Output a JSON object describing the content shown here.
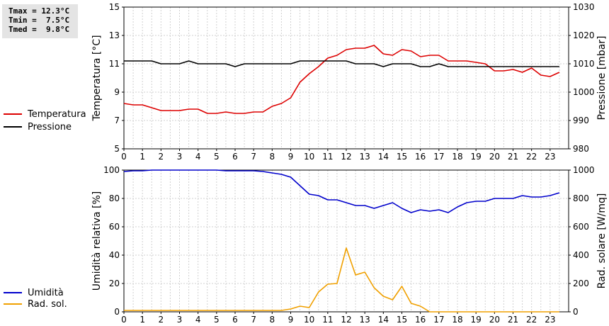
{
  "summary": {
    "tmax": "Tmax = 12.3°C",
    "tmin": "Tmin =  7.5°C",
    "tmed": "Tmed =  9.8°C"
  },
  "colors": {
    "temperature": "#dd0000",
    "pressure": "#000000",
    "humidity": "#0000cc",
    "radiation": "#f0a000"
  },
  "chart_data": [
    {
      "type": "line",
      "ylabel": "Temperatura [°C]",
      "y2label": "Pressione [mbar]",
      "xlim": [
        0,
        24
      ],
      "x_ticks": [
        0,
        1,
        2,
        3,
        4,
        5,
        6,
        7,
        8,
        9,
        10,
        11,
        12,
        13,
        14,
        15,
        16,
        17,
        18,
        19,
        20,
        21,
        22,
        23
      ],
      "ylim": [
        5,
        15
      ],
      "y_ticks": [
        5,
        7,
        9,
        11,
        13,
        15
      ],
      "y2lim": [
        980,
        1030
      ],
      "y2_ticks": [
        980,
        990,
        1000,
        1010,
        1020,
        1030
      ],
      "grid": true,
      "series": [
        {
          "name": "Temperatura",
          "axis": "left",
          "color": "#dd0000",
          "x": [
            0,
            0.5,
            1,
            1.5,
            2,
            2.5,
            3,
            3.5,
            4,
            4.5,
            5,
            5.5,
            6,
            6.5,
            7,
            7.5,
            8,
            8.5,
            9,
            9.5,
            10,
            10.5,
            11,
            11.5,
            12,
            12.5,
            13,
            13.5,
            14,
            14.5,
            15,
            15.5,
            16,
            16.5,
            17,
            17.5,
            18,
            18.5,
            19,
            19.5,
            20,
            20.5,
            21,
            21.5,
            22,
            22.5,
            23,
            23.5
          ],
          "values": [
            8.2,
            8.1,
            8.1,
            7.9,
            7.7,
            7.7,
            7.7,
            7.8,
            7.8,
            7.5,
            7.5,
            7.6,
            7.5,
            7.5,
            7.6,
            7.6,
            8.0,
            8.2,
            8.6,
            9.7,
            10.3,
            10.8,
            11.4,
            11.6,
            12.0,
            12.1,
            12.1,
            12.3,
            11.7,
            11.6,
            12.0,
            11.9,
            11.5,
            11.6,
            11.6,
            11.2,
            11.2,
            11.2,
            11.1,
            11.0,
            10.5,
            10.5,
            10.6,
            10.4,
            10.7,
            10.2,
            10.1,
            10.4
          ]
        },
        {
          "name": "Pressione",
          "axis": "right",
          "color": "#000000",
          "x": [
            0,
            0.5,
            1,
            1.5,
            2,
            2.5,
            3,
            3.5,
            4,
            4.5,
            5,
            5.5,
            6,
            6.5,
            7,
            7.5,
            8,
            8.5,
            9,
            9.5,
            10,
            10.5,
            11,
            11.5,
            12,
            12.5,
            13,
            13.5,
            14,
            14.5,
            15,
            15.5,
            16,
            16.5,
            17,
            17.5,
            18,
            18.5,
            19,
            19.5,
            20,
            20.5,
            21,
            21.5,
            22,
            22.5,
            23,
            23.5
          ],
          "values": [
            1011,
            1011,
            1011,
            1011,
            1010,
            1010,
            1010,
            1011,
            1010,
            1010,
            1010,
            1010,
            1009,
            1010,
            1010,
            1010,
            1010,
            1010,
            1010,
            1011,
            1011,
            1011,
            1011,
            1011,
            1011,
            1010,
            1010,
            1010,
            1009,
            1010,
            1010,
            1010,
            1009,
            1009,
            1010,
            1009,
            1009,
            1009,
            1009,
            1009,
            1009,
            1009,
            1009,
            1009,
            1009,
            1009,
            1009,
            1009
          ]
        }
      ]
    },
    {
      "type": "line",
      "ylabel": "Umidità relativa [%]",
      "y2label": "Rad. solare [W/mq]",
      "xlim": [
        0,
        24
      ],
      "x_ticks": [
        0,
        1,
        2,
        3,
        4,
        5,
        6,
        7,
        8,
        9,
        10,
        11,
        12,
        13,
        14,
        15,
        16,
        17,
        18,
        19,
        20,
        21,
        22,
        23
      ],
      "ylim": [
        0,
        100
      ],
      "y_ticks": [
        0,
        20,
        40,
        60,
        80,
        100
      ],
      "y2lim": [
        0,
        1000
      ],
      "y2_ticks": [
        0,
        200,
        400,
        600,
        800,
        1000
      ],
      "grid": true,
      "series": [
        {
          "name": "Umidità",
          "axis": "left",
          "color": "#0000cc",
          "x": [
            0,
            0.5,
            1,
            1.5,
            2,
            2.5,
            3,
            3.5,
            4,
            4.5,
            5,
            5.5,
            6,
            6.5,
            7,
            7.5,
            8,
            8.5,
            9,
            9.5,
            10,
            10.5,
            11,
            11.5,
            12,
            12.5,
            13,
            13.5,
            14,
            14.5,
            15,
            15.5,
            16,
            16.5,
            17,
            17.5,
            18,
            18.5,
            19,
            19.5,
            20,
            20.5,
            21,
            21.5,
            22,
            22.5,
            23,
            23.5
          ],
          "values": [
            99,
            99.5,
            99.5,
            100,
            100,
            100,
            100,
            100,
            100,
            100,
            100,
            99.5,
            99.5,
            99.5,
            99.5,
            99,
            98,
            97,
            95,
            89,
            83,
            82,
            79,
            79,
            77,
            75,
            75,
            73,
            75,
            77,
            73,
            70,
            72,
            71,
            72,
            70,
            74,
            77,
            78,
            78,
            80,
            80,
            80,
            82,
            81,
            81,
            82,
            84
          ]
        },
        {
          "name": "Rad. sol.",
          "axis": "right",
          "color": "#f0a000",
          "x": [
            0,
            0.5,
            1,
            1.5,
            2,
            2.5,
            3,
            3.5,
            4,
            4.5,
            5,
            5.5,
            6,
            6.5,
            7,
            7.5,
            8,
            8.5,
            9,
            9.5,
            10,
            10.5,
            11,
            11.5,
            12,
            12.5,
            13,
            13.5,
            14,
            14.5,
            15,
            15.5,
            16,
            16.5,
            17,
            17.5,
            18,
            18.5,
            19,
            19.5,
            20,
            20.5,
            21,
            21.5,
            22,
            22.5,
            23,
            23.5
          ],
          "values": [
            10,
            10,
            10,
            10,
            10,
            10,
            10,
            10,
            10,
            10,
            10,
            10,
            10,
            10,
            10,
            10,
            10,
            10,
            20,
            40,
            30,
            140,
            195,
            200,
            450,
            260,
            280,
            170,
            110,
            85,
            180,
            60,
            40,
            0,
            0,
            0,
            0,
            0,
            0,
            0,
            0,
            0,
            0,
            0,
            0,
            0,
            0,
            0
          ]
        }
      ]
    }
  ]
}
